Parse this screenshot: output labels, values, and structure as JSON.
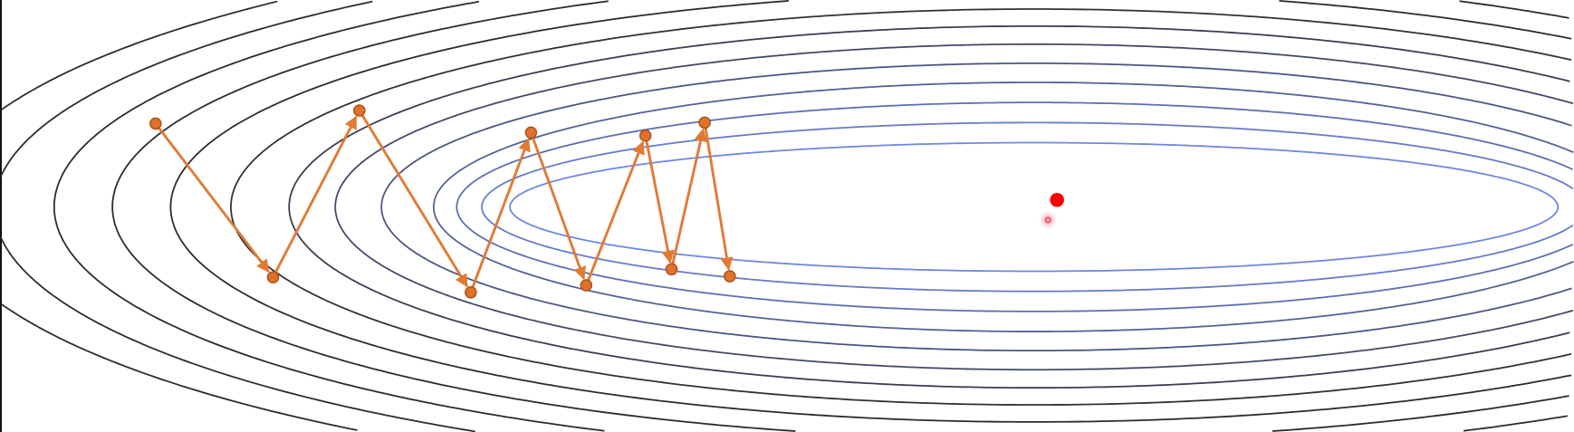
{
  "diagram": {
    "kind": "gradient descent path on elliptical loss contours",
    "colors": {
      "contour_outer": "#2b2b2b",
      "contour_inner": "#6f86e0",
      "path": "#e07a35",
      "path_point_fill": "#e0702a",
      "path_point_stroke": "#a84e17",
      "minimum": "#ff0000",
      "cursor": "#e8405a"
    },
    "icons": {
      "minimum_marker": "red-dot-icon",
      "cursor_marker": "cursor-ring-icon"
    }
  }
}
